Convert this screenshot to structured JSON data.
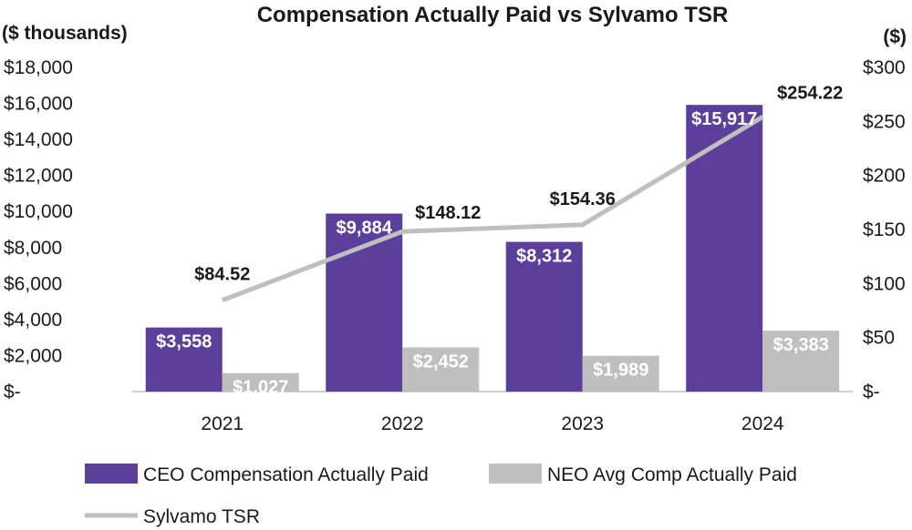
{
  "chart_data": {
    "type": "bar",
    "title": "Compensation Actually Paid vs Sylvamo TSR",
    "left_unit_label": "($ thousands)",
    "right_unit_label": "($)",
    "categories": [
      "2021",
      "2022",
      "2023",
      "2024"
    ],
    "ylim_left": [
      0,
      18000
    ],
    "ylim_right": [
      0,
      300
    ],
    "left_ticks": [
      "$-",
      "$2,000",
      "$4,000",
      "$6,000",
      "$8,000",
      "$10,000",
      "$12,000",
      "$14,000",
      "$16,000",
      "$18,000"
    ],
    "right_ticks": [
      "$-",
      "$50",
      "$100",
      "$150",
      "$200",
      "$250",
      "$300"
    ],
    "series": [
      {
        "name": "CEO Compensation Actually Paid",
        "type": "bar",
        "axis": "left",
        "color": "#5b3f9b",
        "values": [
          3558,
          9884,
          8312,
          15917
        ],
        "labels": [
          "$3,558",
          "$9,884",
          "$8,312",
          "$15,917"
        ]
      },
      {
        "name": "NEO Avg Comp Actually Paid",
        "type": "bar",
        "axis": "left",
        "color": "#bfbfbf",
        "values": [
          1027,
          2452,
          1989,
          3383
        ],
        "labels": [
          "$1,027",
          "$2,452",
          "$1,989",
          "$3,383"
        ]
      },
      {
        "name": "Sylvamo TSR",
        "type": "line",
        "axis": "right",
        "color": "#bfbfbf",
        "values": [
          84.52,
          148.12,
          154.36,
          254.22
        ],
        "labels": [
          "$84.52",
          "$148.12",
          "$154.36",
          "$254.22"
        ]
      }
    ],
    "grid": false,
    "legend_position": "bottom"
  }
}
